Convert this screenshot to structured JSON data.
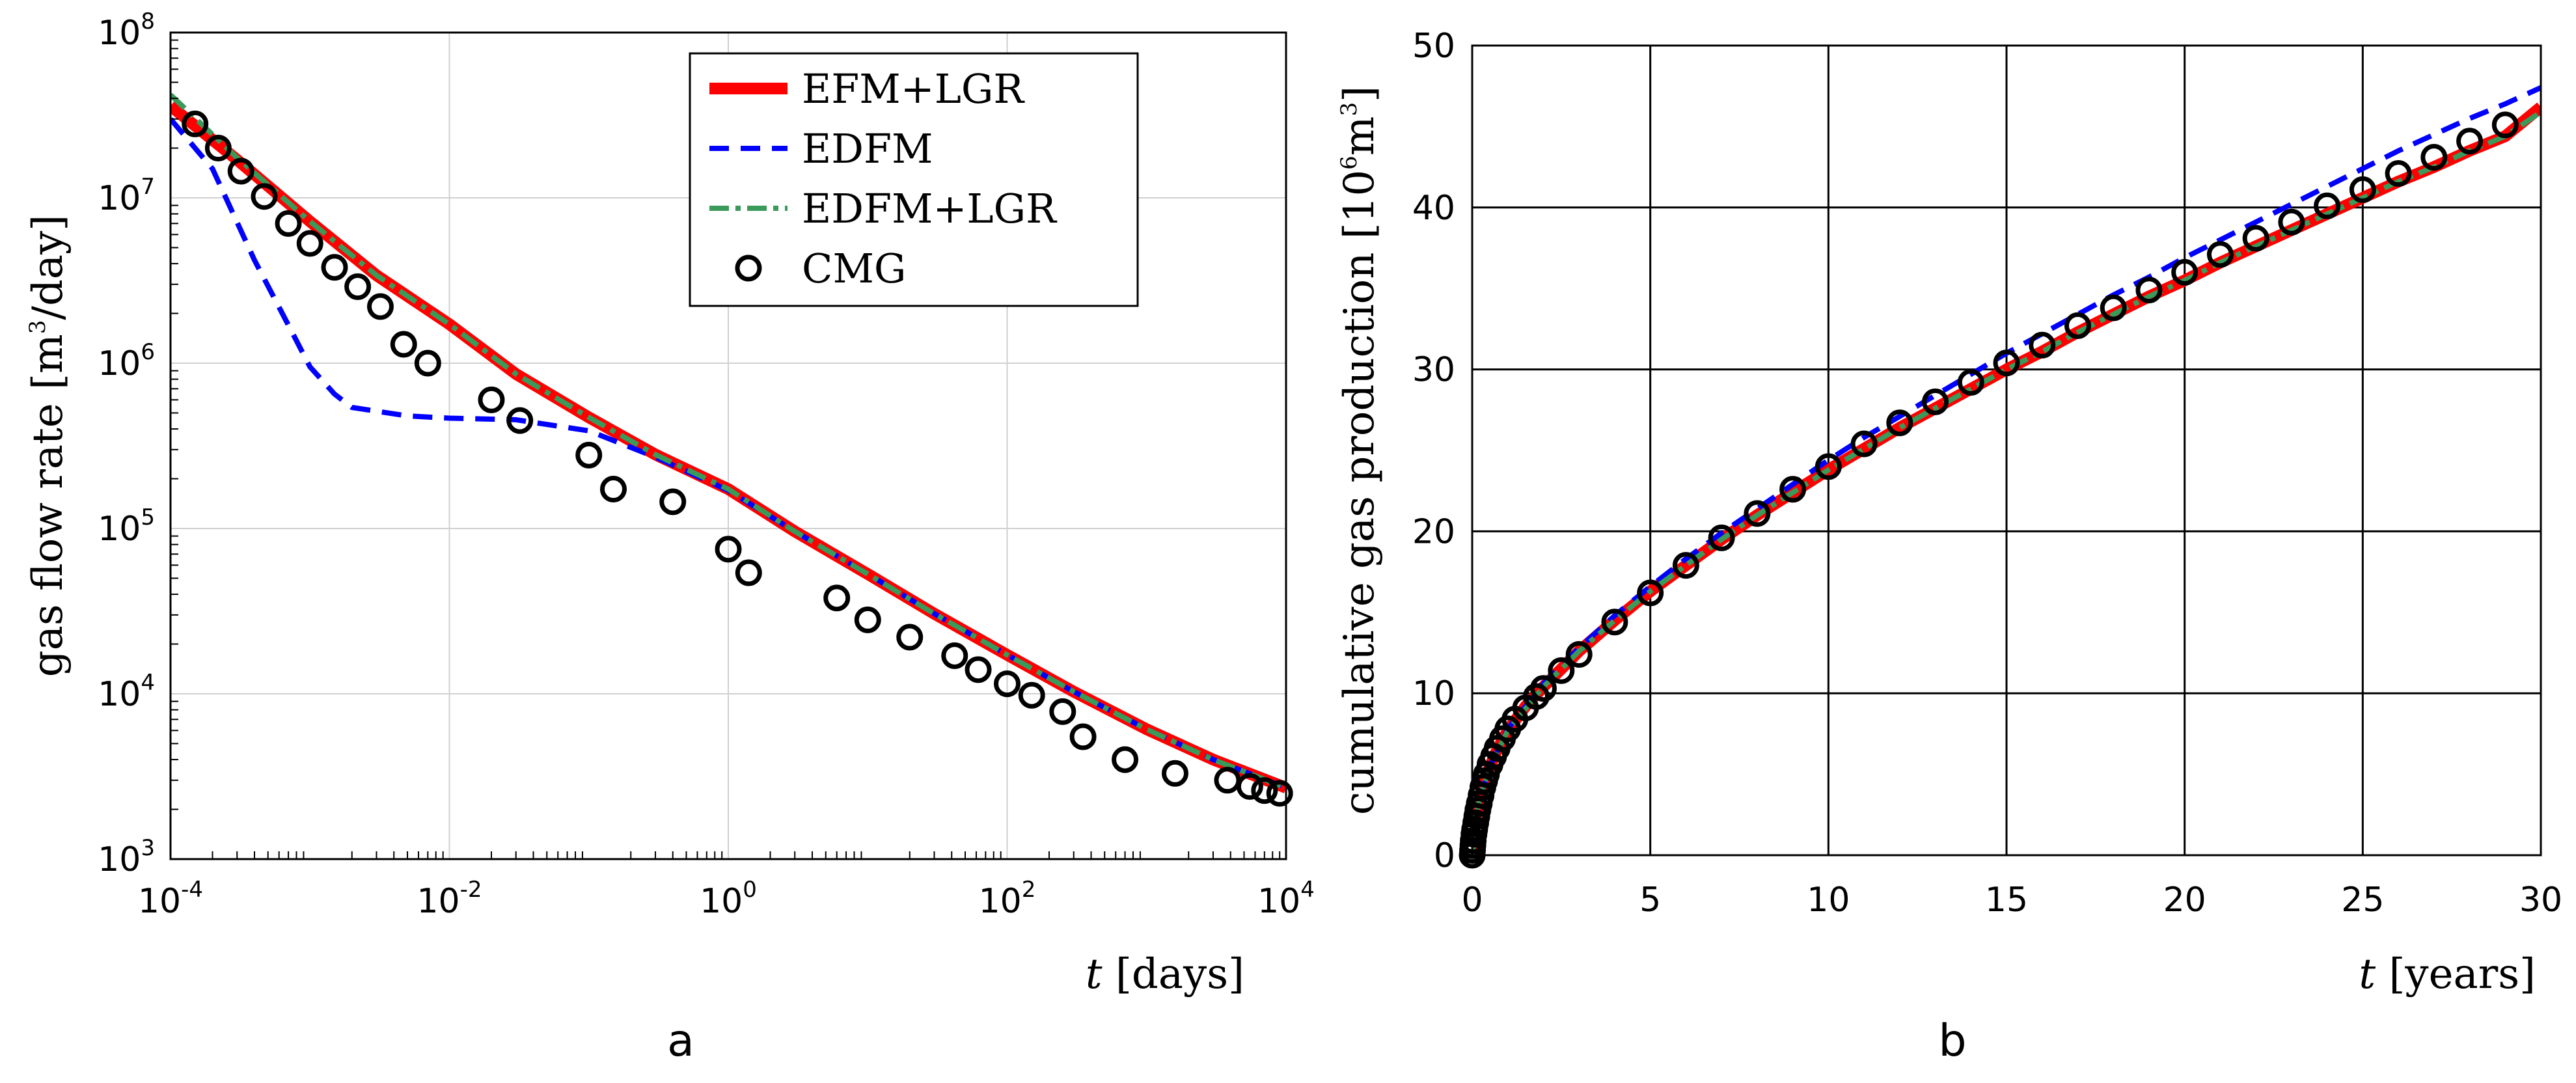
{
  "chart_data": [
    {
      "type": "line",
      "panel_label": "a",
      "ylabel": {
        "main": "gas flow rate [m",
        "sup": "3",
        "tail": "/day]"
      },
      "xlabel": {
        "italic": "t",
        "rest": " [days]"
      },
      "xscale": "log",
      "yscale": "log",
      "xlim": [
        0.0001,
        10000
      ],
      "ylim": [
        1000,
        100000000
      ],
      "grid": true,
      "legend_position": "top-right",
      "x_ticks": [
        {
          "base": "10",
          "exp": "-4",
          "value": 0.0001
        },
        {
          "base": "10",
          "exp": "-2",
          "value": 0.01
        },
        {
          "base": "10",
          "exp": "0",
          "value": 1
        },
        {
          "base": "10",
          "exp": "2",
          "value": 100
        },
        {
          "base": "10",
          "exp": "4",
          "value": 10000
        }
      ],
      "y_ticks": [
        {
          "base": "10",
          "exp": "3",
          "value": 1000
        },
        {
          "base": "10",
          "exp": "4",
          "value": 10000
        },
        {
          "base": "10",
          "exp": "5",
          "value": 100000
        },
        {
          "base": "10",
          "exp": "6",
          "value": 1000000
        },
        {
          "base": "10",
          "exp": "7",
          "value": 10000000
        },
        {
          "base": "10",
          "exp": "8",
          "value": 100000000
        }
      ],
      "series": [
        {
          "name": "EFM+LGR",
          "style": "solid-thick",
          "color": "#ff0000",
          "x": [
            0.0001,
            0.0003,
            0.001,
            0.003,
            0.01,
            0.03,
            0.1,
            0.3,
            1,
            3,
            10,
            30,
            100,
            300,
            1000,
            3000,
            10000
          ],
          "y": [
            36000000,
            17000000,
            7200000,
            3400000,
            1720000,
            860000,
            470000,
            280000,
            173000,
            96000,
            53000,
            30500,
            17200,
            10300,
            6100,
            4000,
            2700
          ]
        },
        {
          "name": "EDFM",
          "style": "dashed",
          "color": "#0000ff",
          "x": [
            0.0001,
            0.0002,
            0.0004,
            0.0007,
            0.001,
            0.0015,
            0.002,
            0.005,
            0.01,
            0.03,
            0.1,
            0.3,
            1,
            3,
            10,
            30,
            100,
            300,
            1000,
            3000,
            10000
          ],
          "y": [
            30000000,
            15000000,
            4200000,
            1700000,
            950000,
            650000,
            540000,
            480000,
            465000,
            455000,
            390000,
            270000,
            170000,
            96000,
            53000,
            30500,
            17200,
            10300,
            6100,
            4000,
            2700
          ]
        },
        {
          "name": "EDFM+LGR",
          "style": "dashdot",
          "color": "#3a9a5a",
          "x": [
            0.0001,
            0.0003,
            0.001,
            0.003,
            0.01,
            0.03,
            0.1,
            0.3,
            1,
            3,
            10,
            30,
            100,
            300,
            1000,
            3000,
            10000
          ],
          "y": [
            42000000,
            17500000,
            7200000,
            3400000,
            1720000,
            860000,
            470000,
            280000,
            173000,
            96000,
            53000,
            30500,
            17200,
            10300,
            6100,
            4000,
            2700
          ]
        },
        {
          "name": "CMG",
          "style": "markers",
          "color": "#000000",
          "x": [
            0.00015,
            0.00022,
            0.00032,
            0.00047,
            0.0007,
            0.001,
            0.0015,
            0.0022,
            0.0032,
            0.0047,
            0.007,
            0.02,
            0.032,
            0.1,
            0.15,
            0.4,
            1,
            1.4,
            6,
            10,
            20,
            42,
            62,
            100,
            150,
            250,
            350,
            700,
            1600,
            3800,
            5500,
            7000,
            9000
          ],
          "y": [
            28000000,
            20000000,
            14500000,
            10200000,
            7000000,
            5300000,
            3800000,
            2900000,
            2200000,
            1300000,
            1000000,
            600000,
            450000,
            278000,
            173000,
            145000,
            75000,
            54000,
            38000,
            28000,
            22000,
            17000,
            14000,
            11500,
            9800,
            7800,
            5500,
            4000,
            3300,
            3000,
            2750,
            2600,
            2500
          ]
        }
      ]
    },
    {
      "type": "line",
      "panel_label": "b",
      "ylabel": {
        "main": "cumulative gas production [10",
        "sup": "6",
        "mid": "m",
        "sup2": "3",
        "tail": "]"
      },
      "xlabel": {
        "italic": "t",
        "rest": " [years]"
      },
      "xlim": [
        0,
        30
      ],
      "ylim": [
        0,
        50
      ],
      "grid": true,
      "x_ticks": [
        "0",
        "5",
        "10",
        "15",
        "20",
        "25",
        "30"
      ],
      "y_ticks": [
        "0",
        "10",
        "20",
        "30",
        "40",
        "50"
      ],
      "series": [
        {
          "name": "EFM+LGR",
          "style": "solid-thick",
          "color": "#ff0000",
          "x": [
            0,
            0.02,
            0.05,
            0.1,
            0.2,
            0.3,
            0.5,
            0.7,
            1,
            1.5,
            2,
            3,
            4,
            5,
            6,
            7,
            8,
            9,
            10,
            11,
            12,
            13,
            14,
            15,
            16,
            17,
            18,
            19,
            20,
            21,
            22,
            23,
            24,
            25,
            26,
            27,
            28,
            29,
            30
          ],
          "y": [
            0,
            0.8,
            1.5,
            2.3,
            3.4,
            4.2,
            5.5,
            6.5,
            7.7,
            9.2,
            10.4,
            12.6,
            14.5,
            16.3,
            17.9,
            19.5,
            21,
            22.4,
            23.8,
            25.1,
            26.4,
            27.6,
            28.8,
            30,
            31.1,
            32.3,
            33.4,
            34.5,
            35.5,
            36.6,
            37.6,
            38.6,
            39.6,
            40.6,
            41.6,
            42.5,
            43.5,
            44.4,
            46.2
          ]
        },
        {
          "name": "EDFM",
          "style": "dashed",
          "color": "#0000ff",
          "x": [
            0,
            0.05,
            0.1,
            0.2,
            0.5,
            1,
            2,
            3,
            4,
            5,
            6,
            7,
            8,
            9,
            10,
            11,
            12,
            13,
            14,
            15,
            16,
            17,
            18,
            19,
            20,
            21,
            22,
            23,
            24,
            25,
            26,
            27,
            28,
            29,
            30
          ],
          "y": [
            0,
            1.5,
            2.3,
            3.4,
            5.5,
            7.8,
            10.6,
            12.8,
            14.8,
            16.6,
            18.3,
            19.9,
            21.4,
            22.9,
            24.4,
            25.8,
            27.1,
            28.4,
            29.7,
            31,
            32.2,
            33.4,
            34.6,
            35.7,
            36.9,
            38,
            39.1,
            40.2,
            41.3,
            42.4,
            43.5,
            44.5,
            45.5,
            46.4,
            47.4
          ]
        },
        {
          "name": "EDFM+LGR",
          "style": "dashdot",
          "color": "#3a9a5a",
          "x": [
            0,
            0.05,
            0.1,
            0.2,
            0.5,
            1,
            2,
            3,
            4,
            5,
            6,
            7,
            8,
            9,
            10,
            11,
            12,
            13,
            14,
            15,
            16,
            17,
            18,
            19,
            20,
            21,
            22,
            23,
            24,
            25,
            26,
            27,
            28,
            29,
            30
          ],
          "y": [
            0,
            1.5,
            2.3,
            3.4,
            5.5,
            7.7,
            10.4,
            12.6,
            14.5,
            16.3,
            17.9,
            19.5,
            21,
            22.4,
            23.8,
            25.1,
            26.4,
            27.6,
            28.8,
            30,
            31.1,
            32.3,
            33.4,
            34.5,
            35.5,
            36.6,
            37.6,
            38.6,
            39.6,
            40.6,
            41.6,
            42.5,
            43.5,
            44.4,
            45.9
          ]
        },
        {
          "name": "CMG",
          "style": "markers",
          "color": "#000000",
          "x": [
            0,
            0.01,
            0.02,
            0.03,
            0.05,
            0.07,
            0.1,
            0.13,
            0.16,
            0.2,
            0.25,
            0.3,
            0.35,
            0.4,
            0.5,
            0.6,
            0.7,
            0.85,
            1,
            1.2,
            1.5,
            1.8,
            2,
            2.5,
            3,
            4,
            5,
            6,
            7,
            8,
            9,
            10,
            11,
            12,
            13,
            14,
            15,
            16,
            17,
            18,
            19,
            20,
            21,
            22,
            23,
            24,
            25,
            26,
            27,
            28,
            29
          ],
          "y": [
            0,
            0.3,
            0.6,
            0.9,
            1.3,
            1.6,
            2,
            2.4,
            2.8,
            3.2,
            3.7,
            4.2,
            4.6,
            5,
            5.6,
            6.1,
            6.6,
            7.2,
            7.8,
            8.4,
            9.1,
            9.8,
            10.3,
            11.4,
            12.4,
            14.4,
            16.2,
            17.9,
            19.6,
            21.1,
            22.6,
            24,
            25.4,
            26.7,
            28,
            29.2,
            30.4,
            31.5,
            32.7,
            33.8,
            34.9,
            36,
            37.1,
            38.1,
            39.1,
            40.1,
            41.1,
            42.1,
            43.1,
            44.1,
            45.1
          ]
        }
      ]
    }
  ]
}
